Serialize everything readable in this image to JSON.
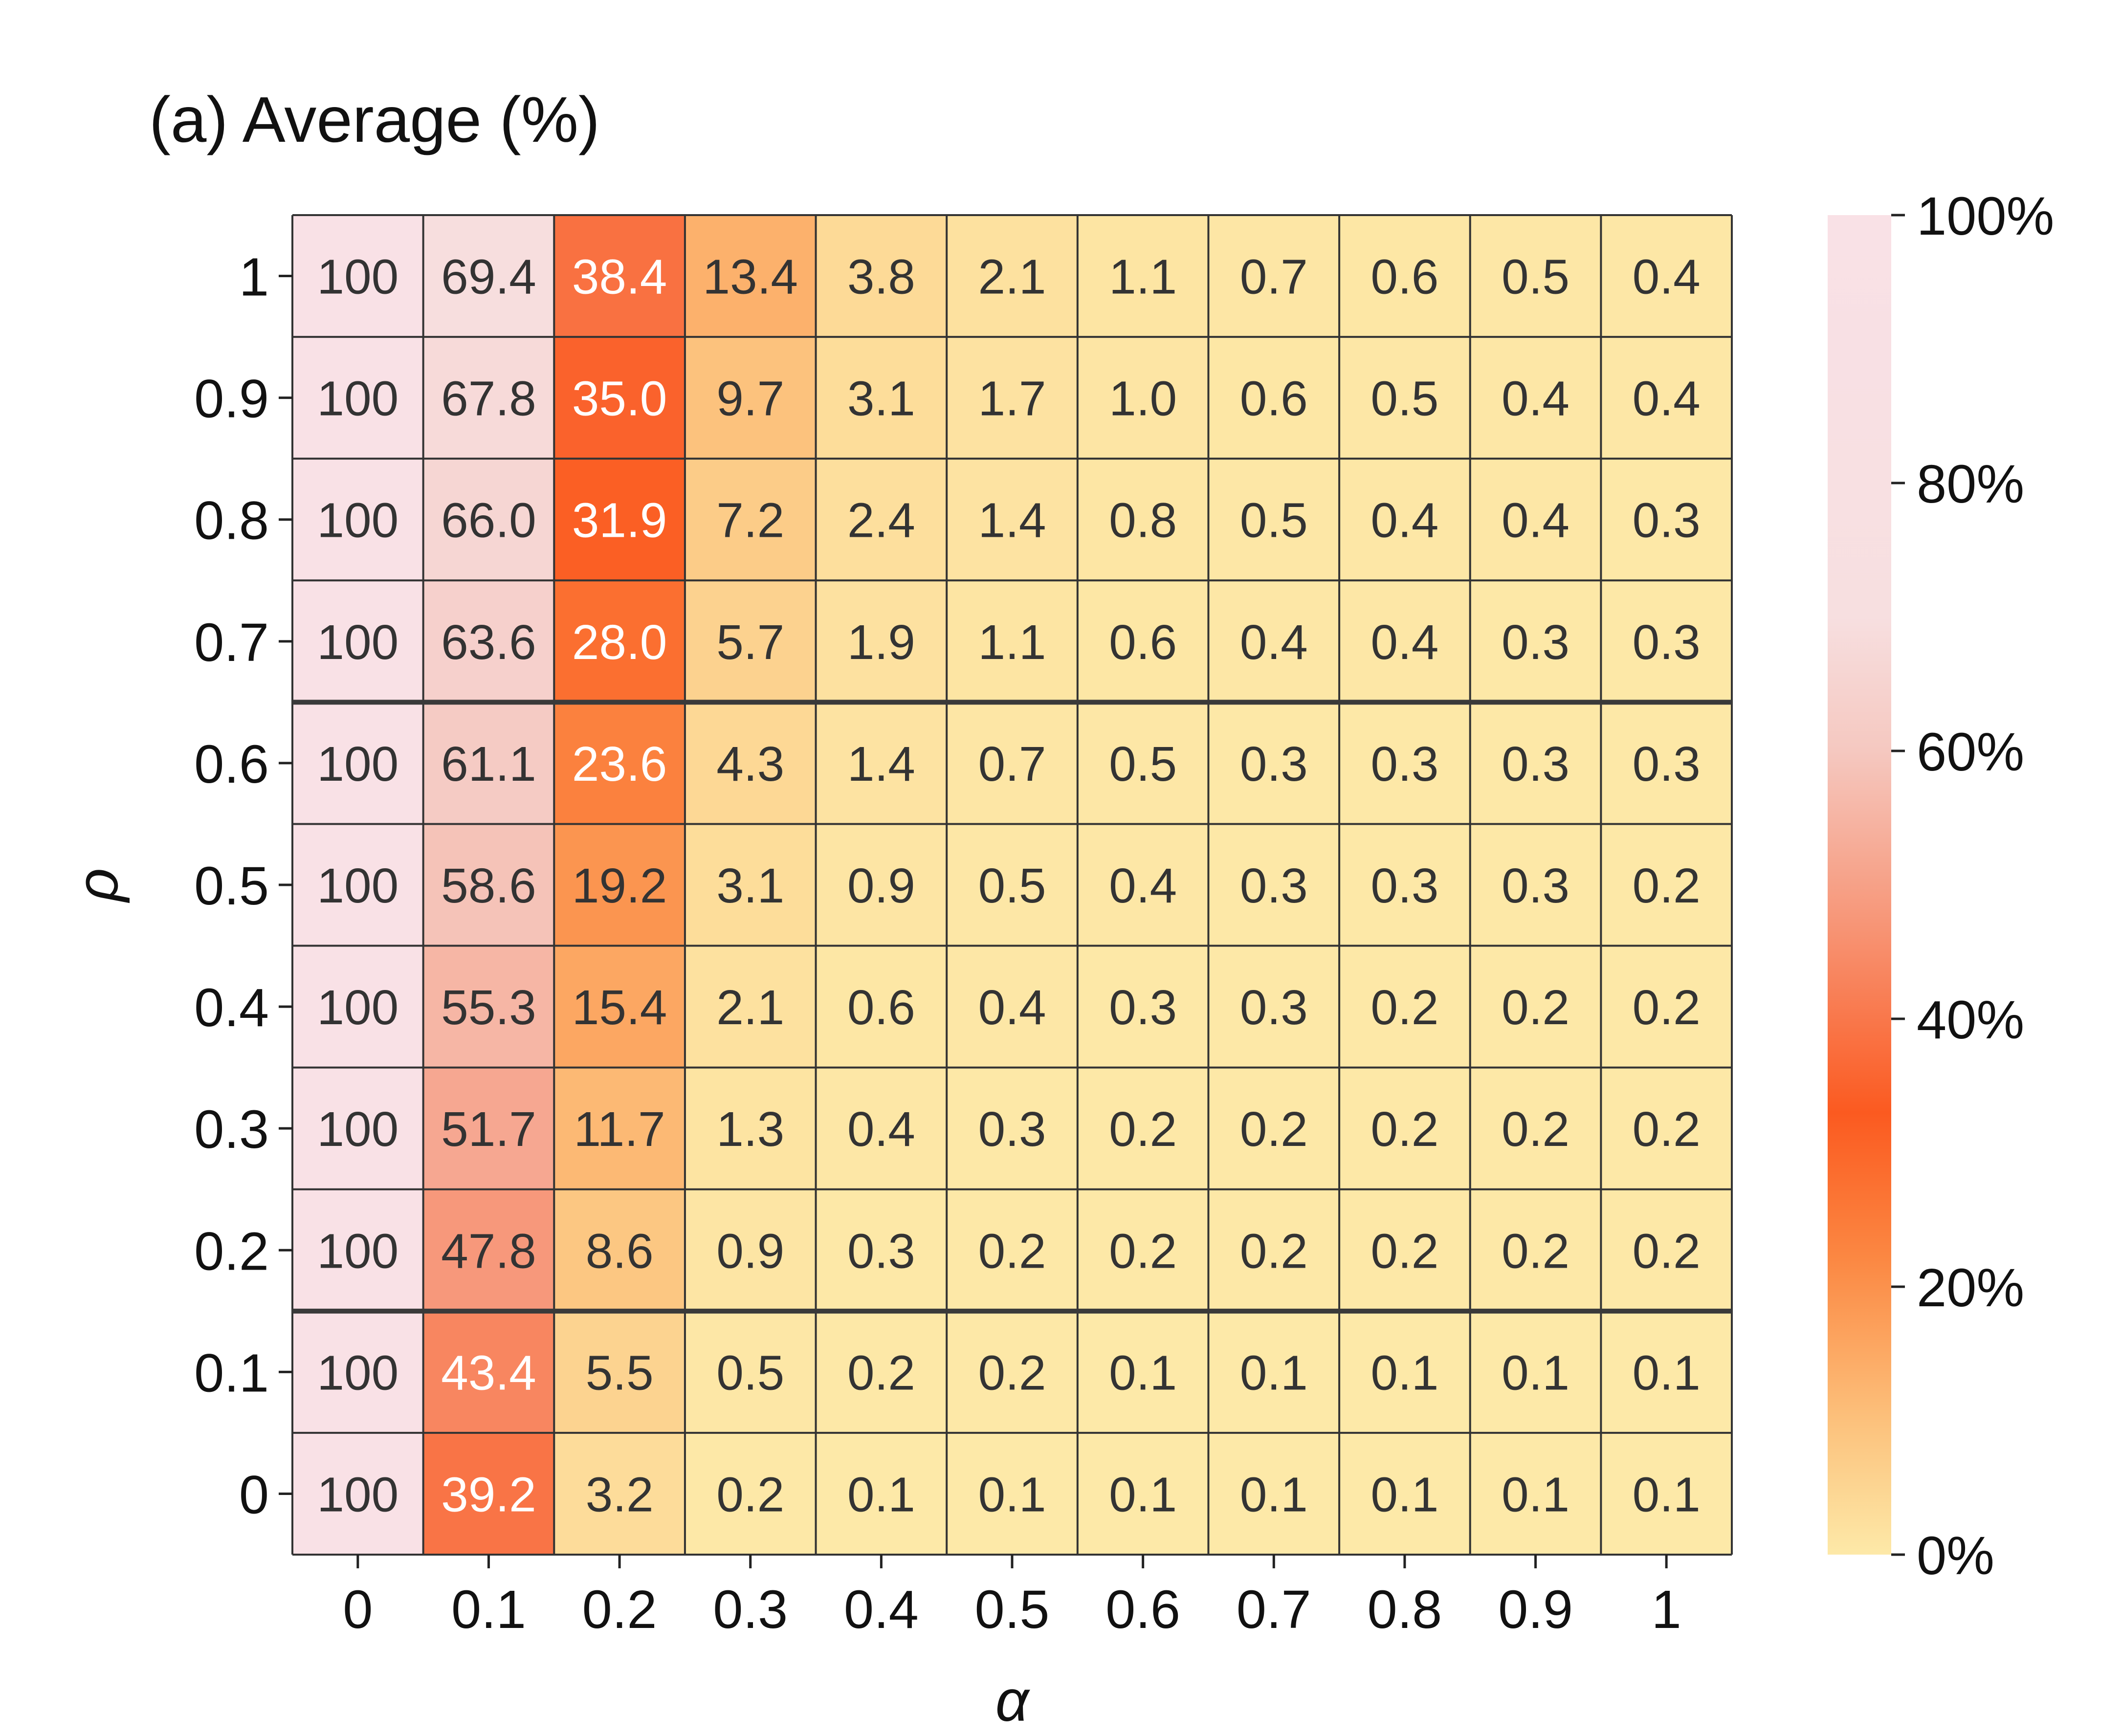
{
  "chart_data": {
    "type": "heatmap",
    "title": "(a) Average (%)",
    "xlabel": "α",
    "ylabel": "ρ",
    "x_categories": [
      "0",
      "0.1",
      "0.2",
      "0.3",
      "0.4",
      "0.5",
      "0.6",
      "0.7",
      "0.8",
      "0.9",
      "1"
    ],
    "y_categories": [
      "1",
      "0.9",
      "0.8",
      "0.7",
      "0.6",
      "0.5",
      "0.4",
      "0.3",
      "0.2",
      "0.1",
      "0"
    ],
    "values": [
      [
        100,
        69.4,
        38.4,
        13.4,
        3.8,
        2.1,
        1.1,
        0.7,
        0.6,
        0.5,
        0.4
      ],
      [
        100,
        67.8,
        35.0,
        9.7,
        3.1,
        1.7,
        1.0,
        0.6,
        0.5,
        0.4,
        0.4
      ],
      [
        100,
        66.0,
        31.9,
        7.2,
        2.4,
        1.4,
        0.8,
        0.5,
        0.4,
        0.4,
        0.3
      ],
      [
        100,
        63.6,
        28.0,
        5.7,
        1.9,
        1.1,
        0.6,
        0.4,
        0.4,
        0.3,
        0.3
      ],
      [
        100,
        61.1,
        23.6,
        4.3,
        1.4,
        0.7,
        0.5,
        0.3,
        0.3,
        0.3,
        0.3
      ],
      [
        100,
        58.6,
        19.2,
        3.1,
        0.9,
        0.5,
        0.4,
        0.3,
        0.3,
        0.3,
        0.2
      ],
      [
        100,
        55.3,
        15.4,
        2.1,
        0.6,
        0.4,
        0.3,
        0.3,
        0.2,
        0.2,
        0.2
      ],
      [
        100,
        51.7,
        11.7,
        1.3,
        0.4,
        0.3,
        0.2,
        0.2,
        0.2,
        0.2,
        0.2
      ],
      [
        100,
        47.8,
        8.6,
        0.9,
        0.3,
        0.2,
        0.2,
        0.2,
        0.2,
        0.2,
        0.2
      ],
      [
        100,
        43.4,
        5.5,
        0.5,
        0.2,
        0.2,
        0.1,
        0.1,
        0.1,
        0.1,
        0.1
      ],
      [
        100,
        39.2,
        3.2,
        0.2,
        0.1,
        0.1,
        0.1,
        0.1,
        0.1,
        0.1,
        0.1
      ]
    ],
    "colorbar": {
      "ticks": [
        "100%",
        "80%",
        "60%",
        "40%",
        "20%",
        "0%"
      ],
      "tick_values": [
        100,
        80,
        60,
        40,
        20,
        0
      ],
      "range": [
        0,
        100
      ],
      "stops": [
        {
          "value": 0,
          "color": "#fde9a8"
        },
        {
          "value": 10,
          "color": "#fcc17c"
        },
        {
          "value": 22,
          "color": "#fb8843"
        },
        {
          "value": 33,
          "color": "#fb5a20"
        },
        {
          "value": 47,
          "color": "#f79576"
        },
        {
          "value": 60,
          "color": "#f5c8c0"
        },
        {
          "value": 70,
          "color": "#f7dfe0"
        },
        {
          "value": 100,
          "color": "#f9e1e6"
        }
      ]
    },
    "thick_separators_after_rows": [
      3,
      8
    ],
    "light_label_color": "#ffffff",
    "dark_label_color": "#333333",
    "light_label_cells": [
      [
        0,
        2
      ],
      [
        1,
        2
      ],
      [
        2,
        2
      ],
      [
        3,
        2
      ],
      [
        4,
        2
      ],
      [
        9,
        1
      ],
      [
        10,
        1
      ]
    ]
  }
}
